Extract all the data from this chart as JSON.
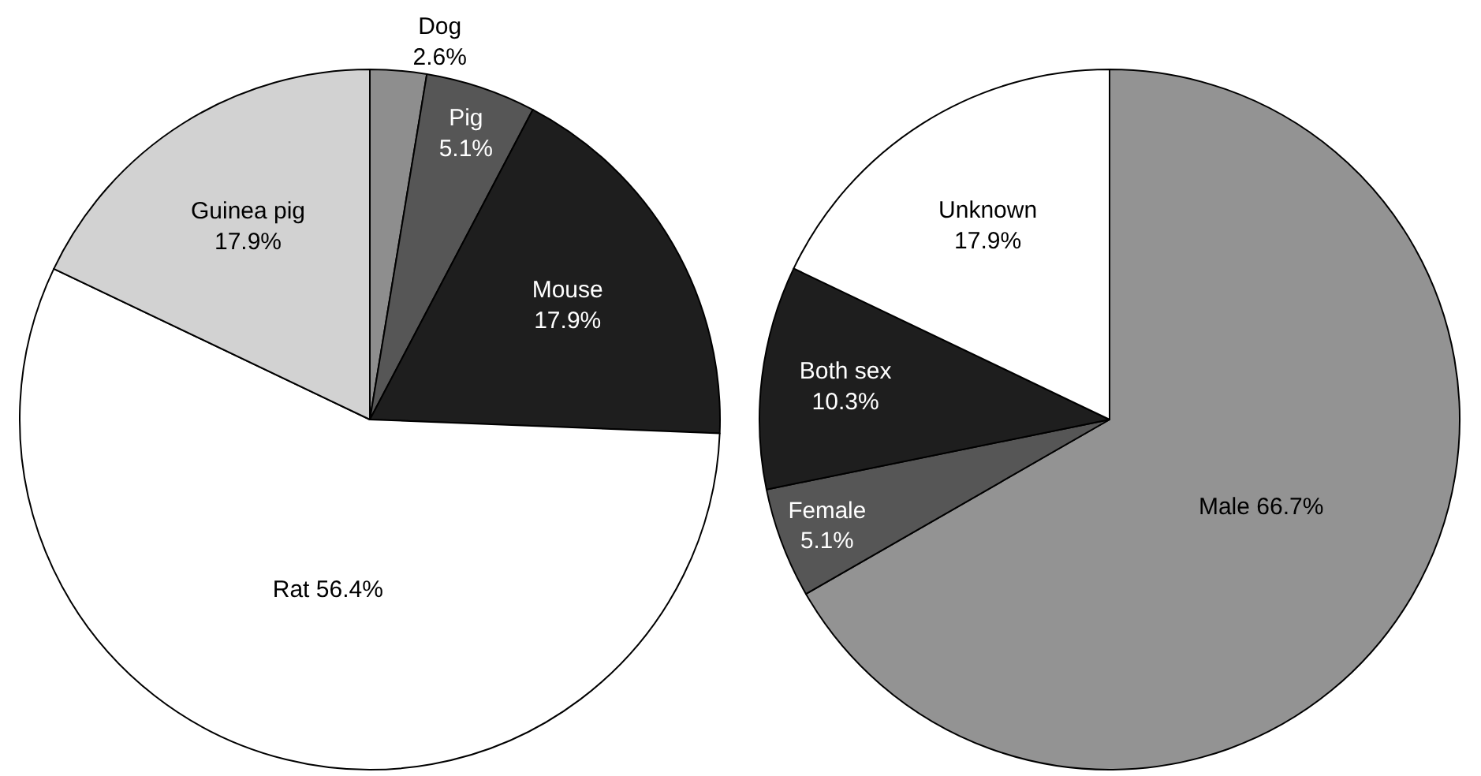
{
  "chart_data": [
    {
      "type": "pie",
      "categories": [
        "Dog",
        "Pig",
        "Mouse",
        "Rat",
        "Guinea pig"
      ],
      "values": [
        2.6,
        5.1,
        17.9,
        56.4,
        17.9
      ],
      "colors": [
        "#8e8e8e",
        "#565656",
        "#1e1e1e",
        "#ffffff",
        "#d2d2d2"
      ],
      "value_labels": [
        "2.6%",
        "5.1%",
        "17.9%",
        "56.4%",
        "17.9%"
      ],
      "legend": false
    },
    {
      "type": "pie",
      "categories": [
        "Male",
        "Female",
        "Both sex",
        "Unknown"
      ],
      "values": [
        66.7,
        5.1,
        10.3,
        17.9
      ],
      "colors": [
        "#939393",
        "#565656",
        "#1e1e1e",
        "#ffffff"
      ],
      "value_labels": [
        "66.7%",
        "5.1%",
        "10.3%",
        "17.9%"
      ],
      "legend": false
    }
  ]
}
